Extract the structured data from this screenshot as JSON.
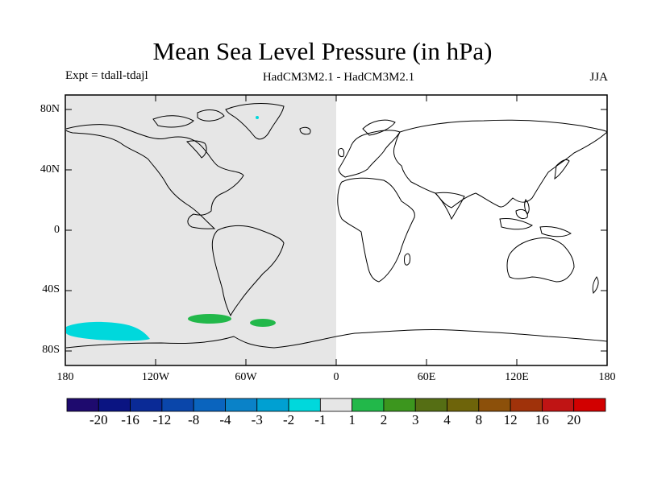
{
  "title": "Mean Sea Level Pressure (in hPa)",
  "subtitle": {
    "left": "Expt = tdall-tdajl",
    "center": "HadCM3M2.1 - HadCM3M2.1",
    "right": "JJA"
  },
  "axes": {
    "y_ticks": [
      "80N",
      "40N",
      "0",
      "40S",
      "80S"
    ],
    "x_ticks": [
      "180",
      "120W",
      "60W",
      "0",
      "60E",
      "120E",
      "180"
    ]
  },
  "colors": {
    "neutral_fill": "#e6e6e6",
    "cyan_anomaly": "#00d8dc",
    "green_anomaly": "#22b84a",
    "coastline": "#000000"
  },
  "features": [
    {
      "name": "South Pacific negative anomaly",
      "class": "-2 to -1",
      "color": "#00d8dc"
    },
    {
      "name": "Drake Passage positive anomaly",
      "class": "1 to 2",
      "color": "#22b84a"
    },
    {
      "name": "South Atlantic positive anomaly",
      "class": "1 to 2",
      "color": "#22b84a"
    }
  ],
  "colorbar": {
    "colors": [
      "#1e0a6e",
      "#0a1482",
      "#0a2a96",
      "#0a46aa",
      "#0a64be",
      "#0a82c8",
      "#00a0d2",
      "#00d8dc",
      "#e6e6e6",
      "#22b84a",
      "#3c961e",
      "#556e14",
      "#6e640a",
      "#8c500a",
      "#a0320a",
      "#c01414",
      "#d20000"
    ],
    "labels": [
      "-20",
      "-16",
      "-12",
      "-8",
      "-4",
      "-3",
      "-2",
      "-1",
      "1",
      "2",
      "3",
      "4",
      "8",
      "12",
      "16",
      "20"
    ]
  }
}
